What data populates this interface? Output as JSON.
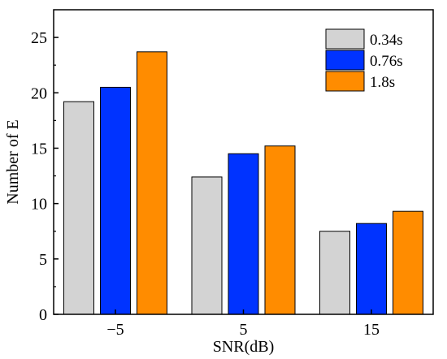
{
  "chart_data": {
    "type": "bar",
    "title": "",
    "xlabel": "SNR(dB)",
    "ylabel": "Number of E",
    "categories": [
      "−5",
      "5",
      "15"
    ],
    "series": [
      {
        "name": "0.34s",
        "color": "#d3d3d3",
        "values": [
          19.2,
          12.4,
          7.5
        ]
      },
      {
        "name": "0.76s",
        "color": "#0033ff",
        "values": [
          20.5,
          14.5,
          8.2
        ]
      },
      {
        "name": "1.8s",
        "color": "#ff8c00",
        "values": [
          23.7,
          15.2,
          9.3
        ]
      }
    ],
    "ylim": [
      0,
      27.5
    ],
    "yticks": [
      0,
      5,
      10,
      15,
      20,
      25
    ],
    "grid": false,
    "legend_position": "top-right"
  }
}
